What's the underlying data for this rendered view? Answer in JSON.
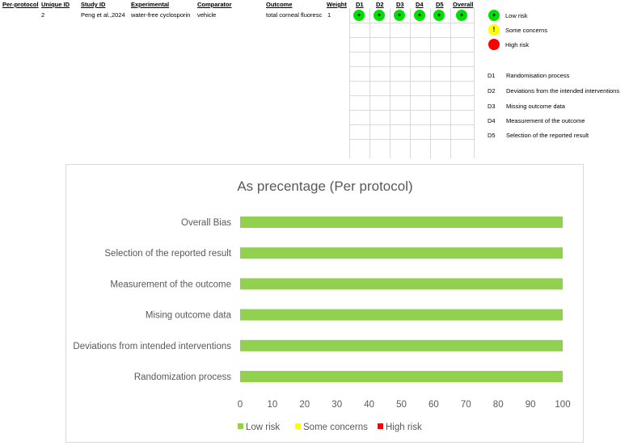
{
  "table": {
    "headers": {
      "per_protocol": "Per-protocol",
      "unique_id": "Unique ID",
      "study_id": "Study ID",
      "experimental": "Experimental",
      "comparator": "Comparator",
      "outcome": "Outcome",
      "weight": "Weight",
      "d1": "D1",
      "d2": "D2",
      "d3": "D3",
      "d4": "D4",
      "d5": "D5",
      "overall": "Overall"
    },
    "row": {
      "unique_id": "2",
      "study_id": "Peng et al.,2024",
      "experimental": "water-free cyclosporin",
      "comparator": "vehicle",
      "outcome": "total corneal fluoresc",
      "weight": "1",
      "judgements": [
        "+",
        "+",
        "+",
        "+",
        "+",
        "+"
      ]
    }
  },
  "legend": {
    "low": {
      "symbol": "+",
      "label": "Low risk",
      "color": "#00e000"
    },
    "some": {
      "symbol": "!",
      "label": "Some concerns",
      "color": "#ffff00"
    },
    "high": {
      "symbol": "",
      "label": "High risk",
      "color": "#ff0000"
    }
  },
  "domains": [
    {
      "key": "D1",
      "label": "Randomisation process"
    },
    {
      "key": "D2",
      "label": "Deviations from the intended interventions"
    },
    {
      "key": "D3",
      "label": "Missing outcome data"
    },
    {
      "key": "D4",
      "label": "Measurement of the outcome"
    },
    {
      "key": "D5",
      "label": "Selection of the reported result"
    }
  ],
  "chart_data": {
    "type": "bar",
    "orientation": "horizontal",
    "stacked": true,
    "title": "As precentage (Per protocol)",
    "categories": [
      "Overall Bias",
      "Selection of the reported result",
      "Measurement of the outcome",
      "Mising outcome data",
      "Deviations from intended interventions",
      "Randomization process"
    ],
    "series": [
      {
        "name": "Low risk",
        "color": "#92d050",
        "values": [
          100,
          100,
          100,
          100,
          100,
          100
        ]
      },
      {
        "name": "Some concerns",
        "color": "#ffff00",
        "values": [
          0,
          0,
          0,
          0,
          0,
          0
        ]
      },
      {
        "name": "High risk",
        "color": "#ff0000",
        "values": [
          0,
          0,
          0,
          0,
          0,
          0
        ]
      }
    ],
    "xlim": [
      0,
      100
    ],
    "xticks": [
      "0",
      "10",
      "20",
      "30",
      "40",
      "50",
      "60",
      "70",
      "80",
      "90",
      "100"
    ],
    "legend_position": "bottom",
    "grid": false
  }
}
